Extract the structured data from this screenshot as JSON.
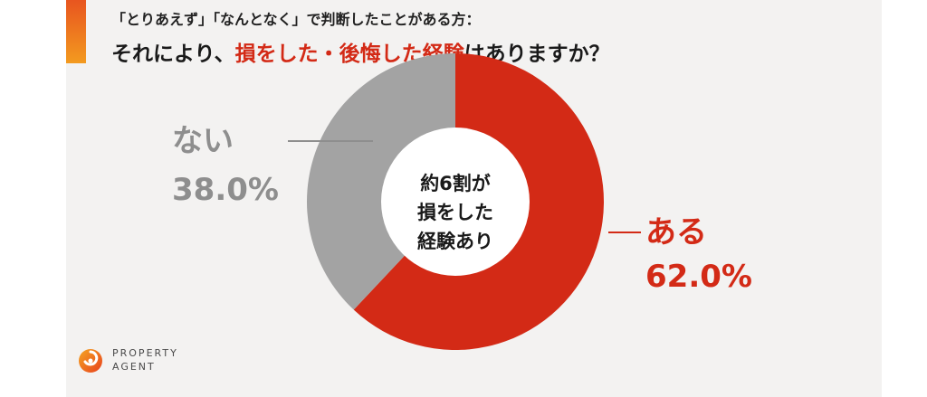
{
  "header": {
    "subtitle": "「とりあえず」「なんとなく」で判断したことがある方：",
    "title_pre": "それにより、",
    "title_highlight": "損をした・後悔した経験",
    "title_post": "はありますか？"
  },
  "center_text": [
    "約6割が",
    "損をした",
    "経験あり"
  ],
  "colors": {
    "accent": "#d32a16",
    "gray": "#a3a3a3",
    "gray_text": "#8e8e8e",
    "background": "#f3f2f1"
  },
  "chart_data": {
    "type": "pie",
    "variant": "donut",
    "slices": [
      {
        "label": "ある",
        "value": 62.0,
        "value_label": "62.0%",
        "color": "#d32a16"
      },
      {
        "label": "ない",
        "value": 38.0,
        "value_label": "38.0%",
        "color": "#a3a3a3"
      }
    ],
    "start": "12 o'clock",
    "direction": "clockwise"
  },
  "logo": {
    "line1": "PROPERTY",
    "line2": "AGENT",
    "icon": "property-agent-logo-icon"
  }
}
